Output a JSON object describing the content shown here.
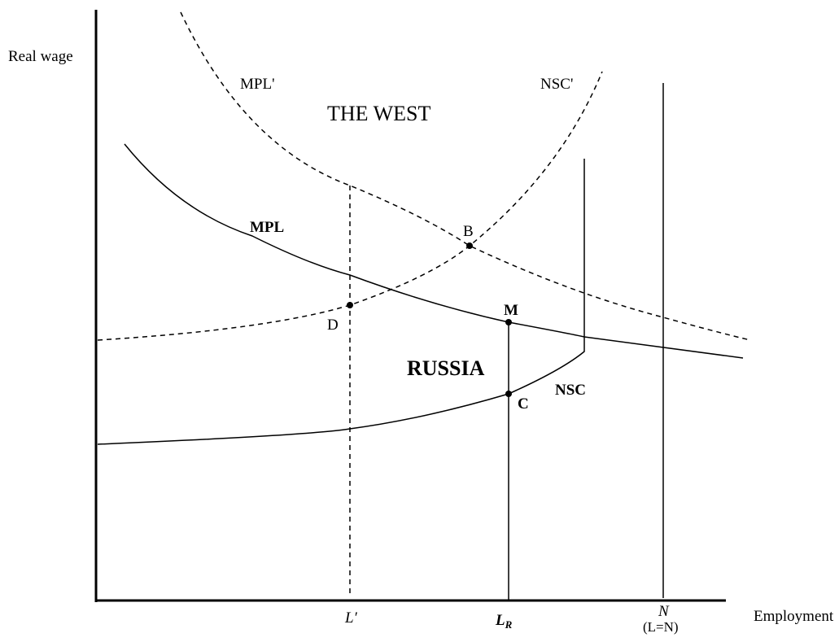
{
  "axes": {
    "y_label": "Real wage",
    "x_label": "Employment"
  },
  "curves": {
    "mpl_prime": "MPL'",
    "nsc_prime": "NSC'",
    "mpl": "MPL",
    "nsc": "NSC"
  },
  "regions": {
    "west": "THE WEST",
    "russia": "RUSSIA"
  },
  "points": {
    "b": "B",
    "d": "D",
    "m": "M",
    "c": "C"
  },
  "x_markers": {
    "l_prime": "L′",
    "l_r": {
      "main": "L",
      "sub": "R"
    },
    "n": "N",
    "l_eq_n": "(L=N)"
  }
}
